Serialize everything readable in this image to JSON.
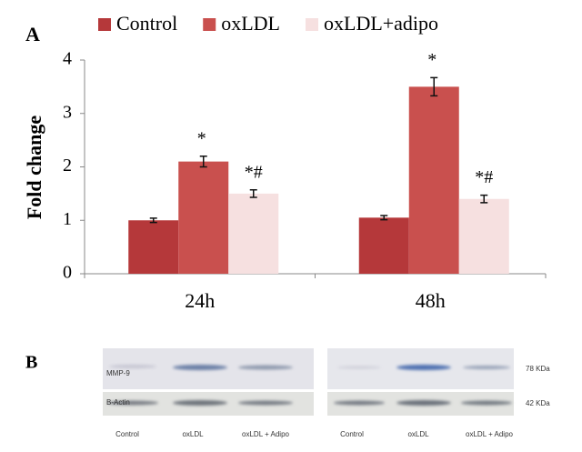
{
  "chart_data": {
    "type": "bar",
    "panel_label": "A",
    "y_label": "Fold change",
    "categories": [
      "24h",
      "48h"
    ],
    "series": [
      {
        "name": "Control",
        "color": "#b5383a",
        "values": [
          1.0,
          1.05
        ],
        "errors": [
          0.04,
          0.04
        ]
      },
      {
        "name": "oxLDL",
        "color": "#c9504e",
        "values": [
          2.1,
          3.5
        ],
        "errors": [
          0.1,
          0.17
        ],
        "markers": [
          "*",
          "*"
        ]
      },
      {
        "name": "oxLDL+adipo",
        "color": "#f6e0e0",
        "values": [
          1.5,
          1.4
        ],
        "errors": [
          0.07,
          0.07
        ],
        "markers": [
          "*#",
          "*#"
        ]
      }
    ],
    "ylim": [
      0,
      4
    ],
    "yticks": [
      0,
      1,
      2,
      3,
      4
    ],
    "grid": false
  },
  "blot": {
    "panel_label": "B",
    "row_labels": [
      "MMP-9",
      "B-Actin"
    ],
    "sizes": [
      "78 KDa",
      "42 KDa"
    ],
    "panels": [
      {
        "lanes": [
          "Control",
          "oxLDL",
          "oxLDL + Adipo"
        ]
      },
      {
        "lanes": [
          "Control",
          "oxLDL",
          "oxLDL + Adipo"
        ]
      }
    ]
  }
}
